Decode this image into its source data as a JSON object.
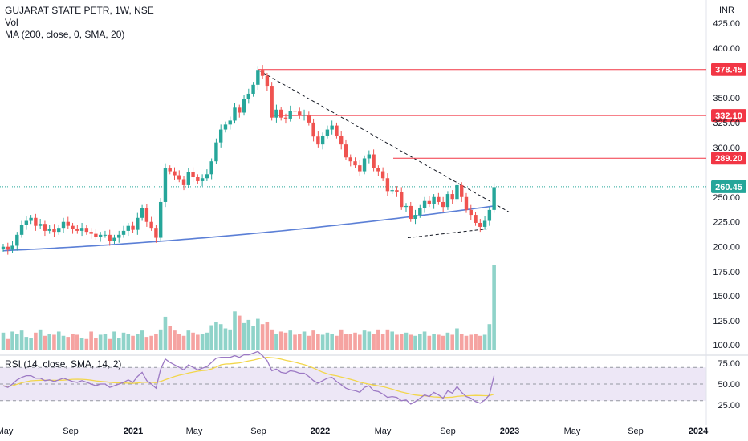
{
  "legend": {
    "symbol": "GUJARAT STATE PETR, 1W, NSE",
    "vol": "Vol",
    "ma": "MA (200, close, 0, SMA, 20)",
    "rsi": "RSI (14, close, SMA, 14, 2)"
  },
  "colors": {
    "up": "#26a69a",
    "down": "#ef5350",
    "vol_up": "#8fd3c9",
    "vol_down": "#f5a3a1",
    "ma": "#5b7fd6",
    "rsi": "#9c79c4",
    "rsi_ma": "#f2d64b",
    "rsi_band": "#ede7f6",
    "level_line": "#f23645",
    "last_price": "#26a69a"
  },
  "chart_data": {
    "type": "candlestick",
    "currency_label": "INR",
    "price_axis_ticks": [
      "425.00",
      "400.00",
      "350.00",
      "325.00",
      "300.00",
      "250.00",
      "225.00",
      "200.00",
      "175.00",
      "150.00",
      "125.00",
      "100.00"
    ],
    "rsi_axis_ticks": [
      "75.00",
      "50.00",
      "25.00"
    ],
    "x_tick_labels": [
      "May",
      "Sep",
      "2021",
      "May",
      "Sep",
      "2022",
      "May",
      "Sep",
      "2023",
      "May",
      "Sep",
      "2024"
    ],
    "price_labels": [
      {
        "text": "378.45",
        "value": 378.45,
        "kind": "resistance"
      },
      {
        "text": "332.10",
        "value": 332.1,
        "kind": "resistance"
      },
      {
        "text": "289.20",
        "value": 289.2,
        "kind": "resistance"
      },
      {
        "text": "260.45",
        "value": 260.45,
        "kind": "last"
      }
    ],
    "ohlc_close": [
      200,
      197,
      201,
      212,
      222,
      226,
      229,
      221,
      223,
      216,
      218,
      215,
      219,
      225,
      221,
      218,
      216,
      219,
      215,
      213,
      210,
      212,
      212,
      206,
      209,
      212,
      216,
      221,
      217,
      229,
      239,
      225,
      219,
      209,
      245,
      279,
      276,
      272,
      268,
      262,
      275,
      270,
      266,
      269,
      273,
      286,
      305,
      318,
      323,
      327,
      340,
      335,
      349,
      354,
      363,
      378,
      372,
      362,
      330,
      338,
      330,
      329,
      337,
      336,
      332,
      333,
      325,
      311,
      303,
      312,
      318,
      322,
      312,
      303,
      290,
      286,
      282,
      276,
      289,
      293,
      279,
      276,
      269,
      256,
      257,
      255,
      240,
      241,
      228,
      232,
      239,
      246,
      243,
      250,
      245,
      240,
      253,
      248,
      262,
      250,
      237,
      232,
      224,
      220,
      226,
      237,
      260
    ],
    "ma_200_start": 196,
    "ma_200_end": 241,
    "volume": [
      32,
      20,
      34,
      30,
      36,
      24,
      22,
      32,
      38,
      26,
      30,
      28,
      34,
      26,
      24,
      30,
      28,
      22,
      20,
      34,
      22,
      28,
      30,
      20,
      34,
      22,
      32,
      30,
      26,
      30,
      36,
      24,
      26,
      30,
      38,
      62,
      44,
      36,
      30,
      26,
      36,
      32,
      28,
      30,
      32,
      46,
      52,
      48,
      40,
      38,
      72,
      64,
      50,
      56,
      44,
      58,
      48,
      52,
      38,
      30,
      34,
      32,
      36,
      28,
      30,
      34,
      26,
      36,
      30,
      28,
      32,
      30,
      26,
      38,
      30,
      30,
      32,
      28,
      36,
      34,
      30,
      38,
      30,
      38,
      34,
      28,
      30,
      32,
      28,
      26,
      30,
      34,
      26,
      30,
      28,
      26,
      32,
      28,
      40,
      30,
      26,
      28,
      30,
      26,
      28,
      48,
      160
    ],
    "volume_max": 160,
    "rsi": [
      48,
      46,
      50,
      55,
      58,
      60,
      60,
      57,
      57,
      54,
      55,
      53,
      55,
      57,
      55,
      53,
      52,
      54,
      52,
      50,
      48,
      50,
      50,
      46,
      48,
      50,
      52,
      55,
      52,
      59,
      64,
      54,
      50,
      45,
      68,
      80,
      76,
      73,
      70,
      67,
      73,
      70,
      67,
      69,
      71,
      76,
      81,
      82,
      82,
      82,
      84,
      82,
      85,
      85,
      87,
      89,
      84,
      78,
      66,
      68,
      64,
      63,
      66,
      65,
      63,
      63,
      59,
      54,
      51,
      54,
      57,
      58,
      53,
      49,
      45,
      43,
      42,
      40,
      46,
      48,
      42,
      41,
      38,
      34,
      35,
      34,
      30,
      31,
      26,
      29,
      33,
      37,
      35,
      40,
      37,
      33,
      42,
      39,
      47,
      40,
      35,
      33,
      29,
      27,
      31,
      37,
      60
    ],
    "rsi_range": [
      20,
      80
    ]
  }
}
